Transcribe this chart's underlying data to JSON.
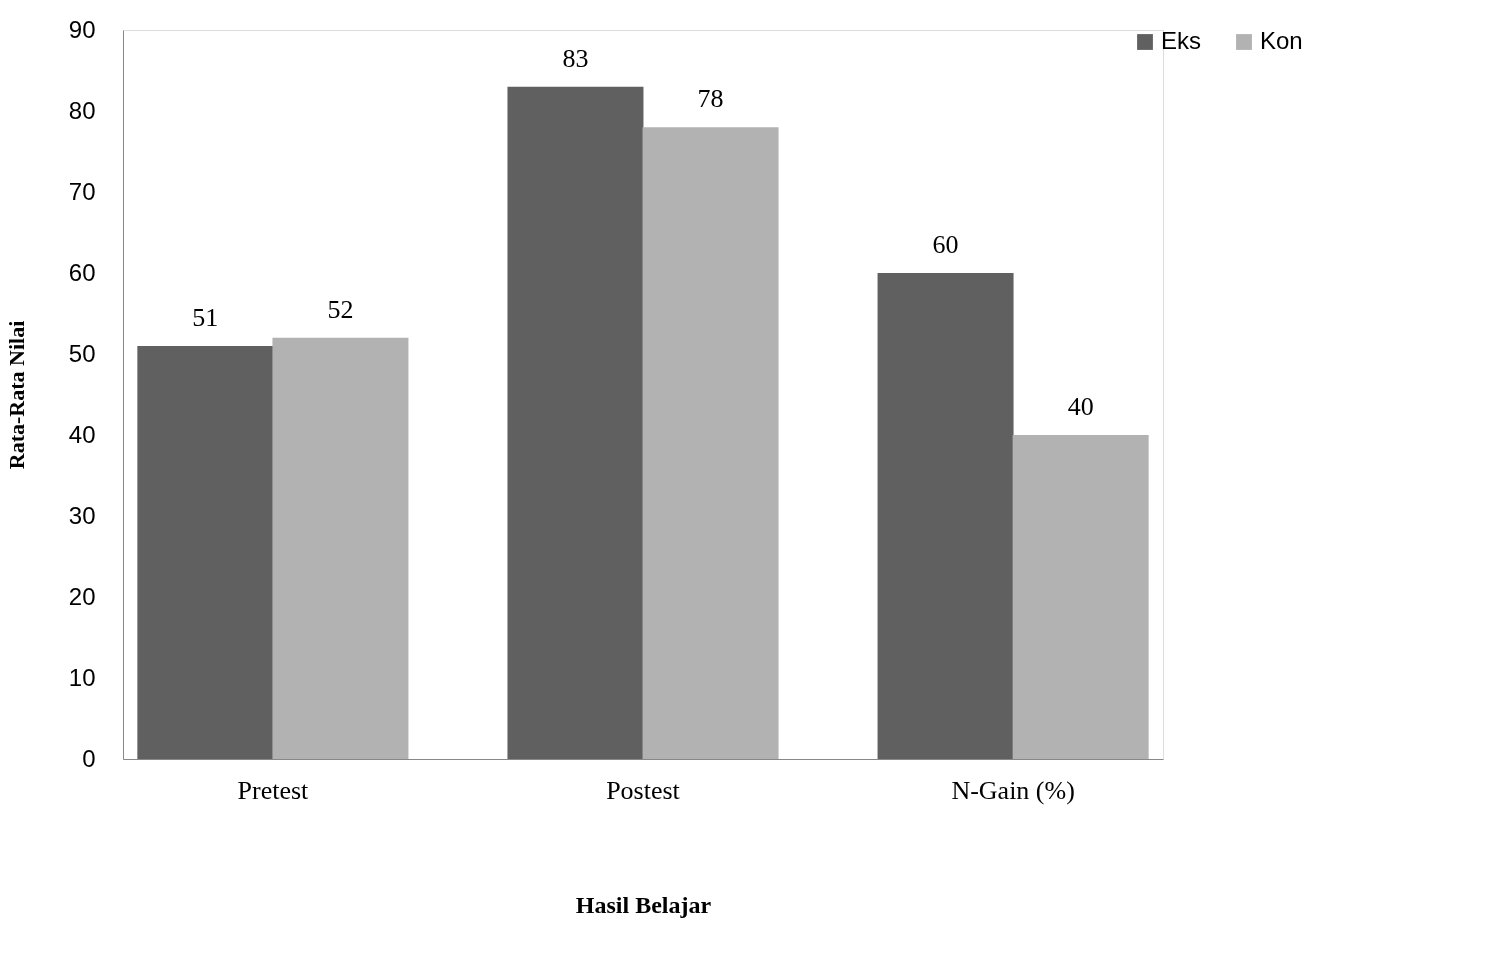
{
  "chart_data": {
    "type": "bar",
    "xlabel": "Hasil Belajar",
    "ylabel": "Rata-Rata Nilai",
    "categories": [
      "Pretest",
      "Postest",
      "N-Gain (%)"
    ],
    "series": [
      {
        "name": "Eks",
        "color": "#606060",
        "values": [
          51,
          83,
          60
        ]
      },
      {
        "name": "Kon",
        "color": "#b2b2b2",
        "values": [
          52,
          78,
          40
        ]
      }
    ],
    "ylim": [
      0,
      90
    ],
    "yticks": [
      0,
      10,
      20,
      30,
      40,
      50,
      60,
      70,
      80,
      90
    ],
    "grid": false,
    "legend": "right",
    "data_labels": true
  }
}
